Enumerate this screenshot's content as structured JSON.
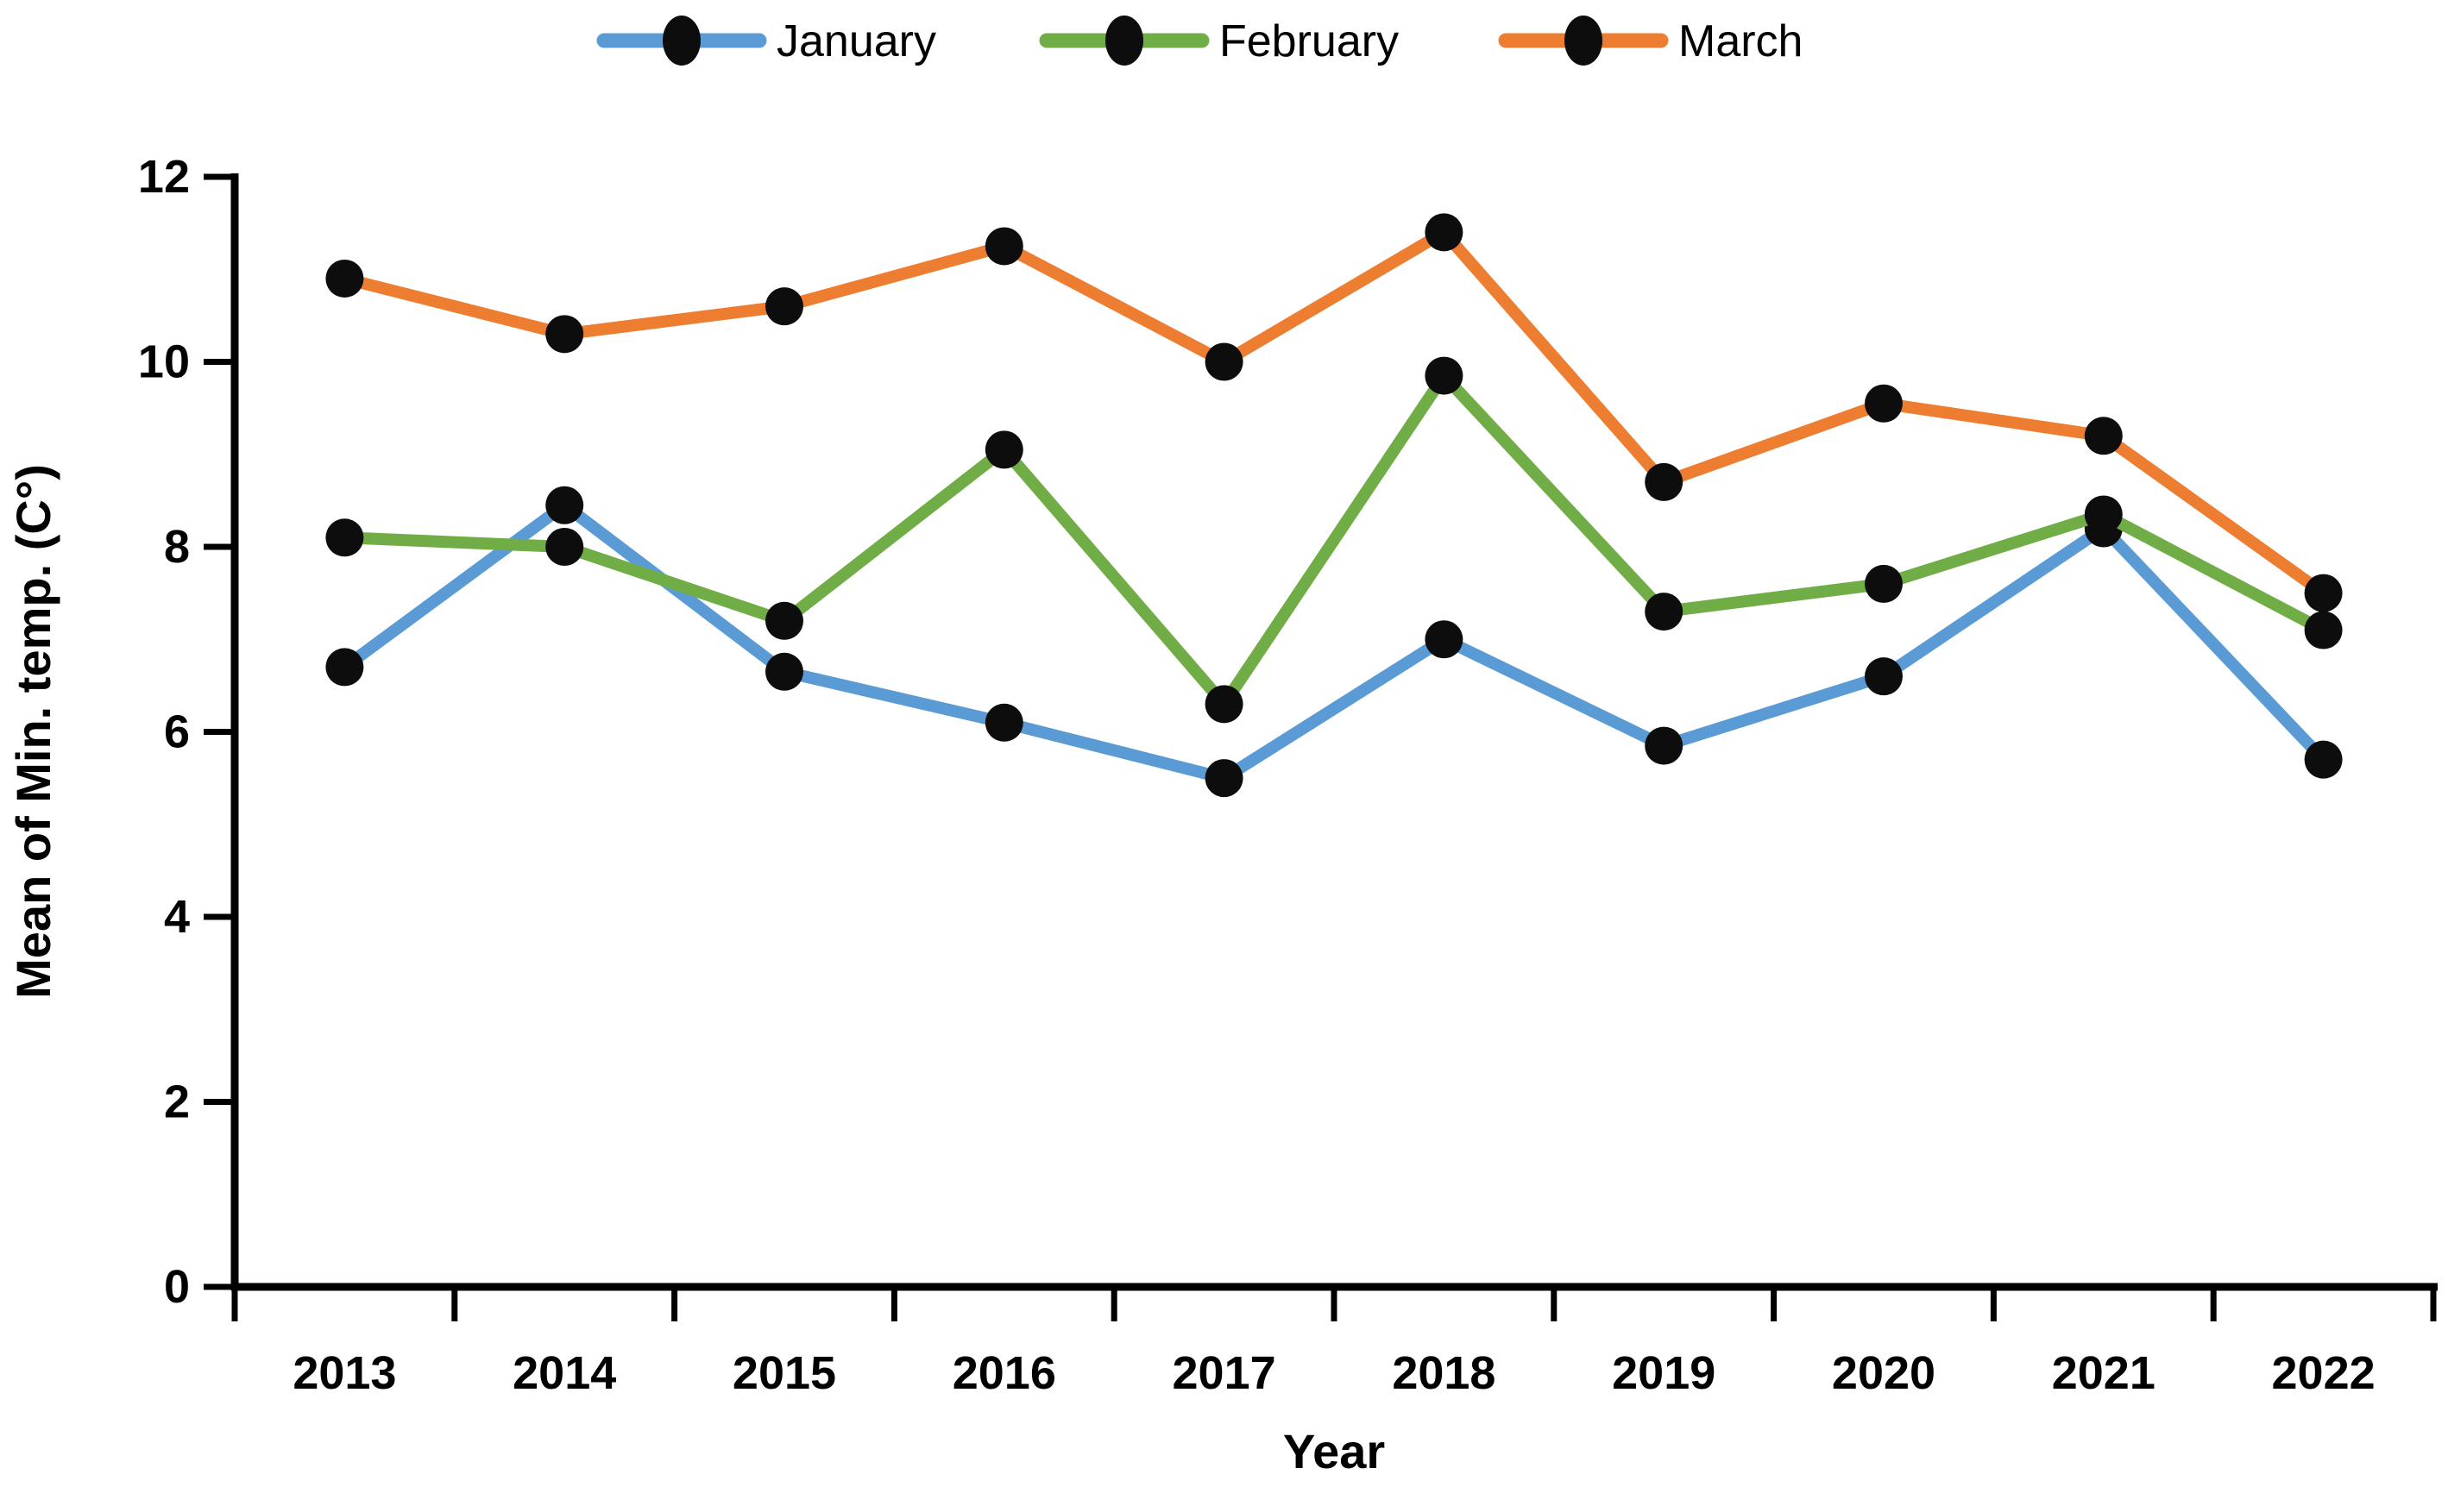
{
  "chart_data": {
    "type": "line",
    "title": "",
    "xlabel": "Year",
    "ylabel": "Mean of Min. temp. (C°)",
    "categories": [
      "2013",
      "2014",
      "2015",
      "2016",
      "2017",
      "2018",
      "2019",
      "2020",
      "2021",
      "2022"
    ],
    "series": [
      {
        "name": "January",
        "color": "#5B9BD5",
        "values": [
          6.7,
          8.45,
          6.65,
          6.1,
          5.5,
          7.0,
          5.85,
          6.6,
          8.2,
          5.7
        ]
      },
      {
        "name": "February",
        "color": "#70AD47",
        "values": [
          8.1,
          8.0,
          7.2,
          9.05,
          6.3,
          9.85,
          7.3,
          7.6,
          8.35,
          7.1
        ]
      },
      {
        "name": "March",
        "color": "#ED7D31",
        "values": [
          10.9,
          10.3,
          10.6,
          11.25,
          10.0,
          11.4,
          8.7,
          9.55,
          9.2,
          7.5
        ]
      }
    ],
    "yticks": [
      "0",
      "2",
      "4",
      "6",
      "8",
      "10",
      "12"
    ],
    "ylim": [
      0,
      12
    ],
    "ytick_step": 2,
    "marker_color": "#0d0d0d",
    "axis_color": "#000000",
    "legend_position": "top",
    "grid": false
  }
}
